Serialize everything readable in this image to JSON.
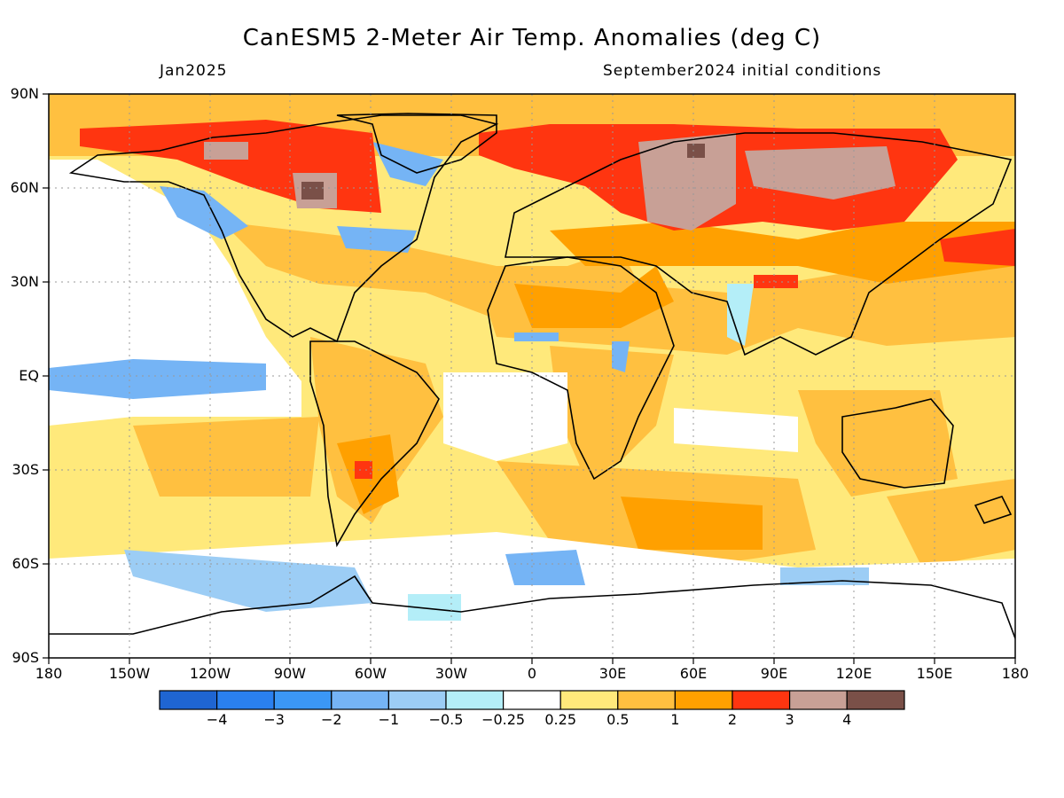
{
  "header": {
    "title": "CanESM5 2-Meter Air Temp. Anomalies (deg C)",
    "period": "Jan2025",
    "initial_conditions": "September2024 initial conditions"
  },
  "axes": {
    "lat_labels": [
      "90N",
      "60N",
      "30N",
      "EQ",
      "30S",
      "60S",
      "90S"
    ],
    "lon_labels": [
      "180",
      "150W",
      "120W",
      "90W",
      "60W",
      "30W",
      "0",
      "30E",
      "60E",
      "90E",
      "120E",
      "150E",
      "180"
    ]
  },
  "colorbar": {
    "colors": [
      "#1f65d2",
      "#2a80ef",
      "#3b97f5",
      "#75b4f5",
      "#9ccdf5",
      "#b4eef8",
      "#ffffff",
      "#ffe97b",
      "#ffc040",
      "#ffa000",
      "#ff3510",
      "#c8a096",
      "#7a5048"
    ],
    "labels": [
      "−4",
      "−3",
      "−2",
      "−1",
      "−0.5",
      "−0.25",
      "0.25",
      "0.5",
      "1",
      "2",
      "3",
      "4"
    ]
  },
  "map_fill": {
    "background": "#ffe97b",
    "regions": [
      {
        "name": "arctic-band",
        "color": "#ffc040"
      },
      {
        "name": "canada-warm",
        "color": "#ff3510"
      },
      {
        "name": "hudson-hot",
        "color": "#c8a096"
      },
      {
        "name": "siberia-warm",
        "color": "#ff3510"
      },
      {
        "name": "siberia-hot",
        "color": "#c8a096"
      },
      {
        "name": "alaska-cool",
        "color": "#75b4f5"
      },
      {
        "name": "pacific-cool",
        "color": "#75b4f5"
      },
      {
        "name": "southern-cool",
        "color": "#9ccdf5"
      }
    ]
  }
}
